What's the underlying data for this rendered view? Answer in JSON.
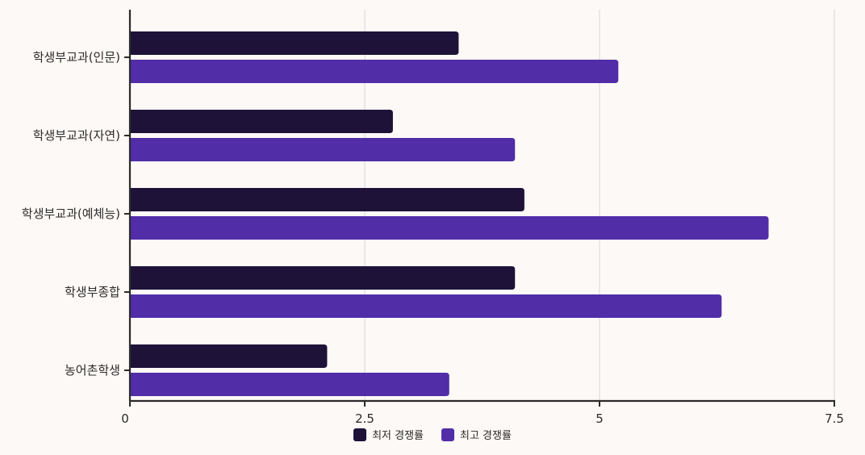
{
  "chart_data": {
    "type": "bar",
    "orientation": "horizontal",
    "categories": [
      "학생부교과(인문)",
      "학생부교과(자연)",
      "학생부교과(예체능)",
      "학생부종합",
      "농어촌학생"
    ],
    "series": [
      {
        "name": "최저 경쟁률",
        "color": "#1e1238",
        "values": [
          3.5,
          2.8,
          4.2,
          4.1,
          2.1
        ]
      },
      {
        "name": "최고 경쟁률",
        "color": "#512da8",
        "values": [
          5.2,
          4.1,
          6.8,
          6.3,
          3.4
        ]
      }
    ],
    "xlim": [
      0,
      7.5
    ],
    "xticks": [
      "0",
      "2.5",
      "5",
      "7.5"
    ],
    "xtick_values": [
      0,
      2.5,
      5,
      7.5
    ],
    "grid": true,
    "legend_position": "bottom"
  }
}
